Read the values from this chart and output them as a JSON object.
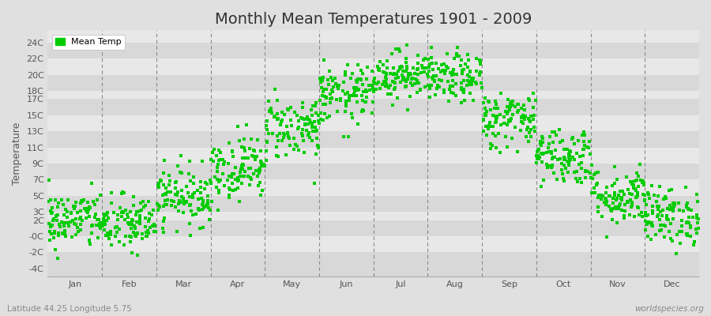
{
  "title": "Monthly Mean Temperatures 1901 - 2009",
  "ylabel": "Temperature",
  "subtitle_left": "Latitude 44.25 Longitude 5.75",
  "subtitle_right": "worldspecies.org",
  "legend_label": "Mean Temp",
  "dot_color": "#00CC00",
  "bg_color": "#E0E0E0",
  "band_colors": [
    "#D8D8D8",
    "#E8E8E8"
  ],
  "yticks": [
    -4,
    -2,
    0,
    2,
    3,
    5,
    7,
    9,
    11,
    13,
    15,
    17,
    18,
    20,
    22,
    24
  ],
  "ytick_labels": [
    "-4C",
    "-2C",
    "-0C",
    "2C",
    "3C",
    "5C",
    "7C",
    "9C",
    "11C",
    "13C",
    "15C",
    "17C",
    "18C",
    "20C",
    "22C",
    "24C"
  ],
  "ylim": [
    -5.0,
    25.5
  ],
  "months": [
    "Jan",
    "Feb",
    "Mar",
    "Apr",
    "May",
    "Jun",
    "Jul",
    "Aug",
    "Sep",
    "Oct",
    "Nov",
    "Dec"
  ],
  "month_means": [
    2.0,
    1.5,
    5.0,
    8.5,
    13.5,
    17.5,
    20.0,
    19.5,
    14.5,
    10.0,
    5.0,
    2.5
  ],
  "month_stds": [
    1.8,
    1.8,
    1.8,
    2.0,
    2.0,
    1.8,
    1.5,
    1.5,
    1.8,
    1.8,
    1.8,
    1.8
  ],
  "n_points": 109,
  "seed": 42,
  "title_fontsize": 14,
  "tick_fontsize": 8,
  "ylabel_fontsize": 9
}
